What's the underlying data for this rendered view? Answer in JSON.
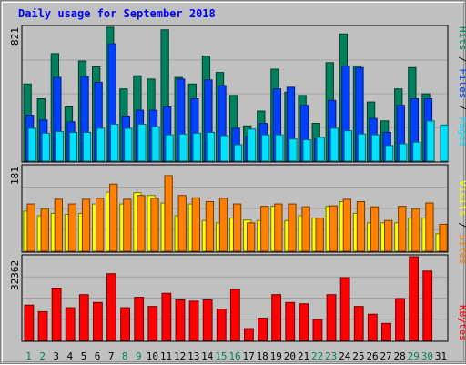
{
  "title": "Daily usage for September 2018",
  "colors": {
    "background": "#c0c0c0",
    "plot_bg": "#c0c0c0",
    "hits": "#00805c",
    "files": "#0040ff",
    "pages": "#00e0ff",
    "visits": "#ffff00",
    "sites": "#ff8000",
    "kbytes": "#ff0000",
    "title": "#0000ff",
    "weekend_day": "#00805c",
    "weekday": "#000000"
  },
  "right_labels": {
    "top": {
      "pages": "Pages",
      "files": "Files",
      "hits": "Hits",
      "sep": " / "
    },
    "middle": {
      "sites": "Sites",
      "visits": "Visits",
      "sep": " / "
    },
    "bottom": {
      "kbytes": "KBytes"
    }
  },
  "chart_data": [
    {
      "type": "bar",
      "panel": "hits-files-pages",
      "ymax_label": "821",
      "ylim": [
        0,
        821
      ],
      "categories": [
        "1",
        "2",
        "3",
        "4",
        "5",
        "6",
        "7",
        "8",
        "9",
        "10",
        "11",
        "12",
        "13",
        "14",
        "15",
        "16",
        "17",
        "18",
        "19",
        "20",
        "21",
        "22",
        "23",
        "24",
        "25",
        "26",
        "27",
        "28",
        "29",
        "30",
        "31"
      ],
      "weekend_days": [
        "1",
        "2",
        "8",
        "9",
        "15",
        "16",
        "22",
        "23",
        "29",
        "30"
      ],
      "series": [
        {
          "name": "Hits",
          "values": [
            470,
            380,
            655,
            330,
            610,
            575,
            816,
            440,
            520,
            500,
            800,
            510,
            470,
            640,
            540,
            400,
            215,
            305,
            560,
            420,
            400,
            230,
            600,
            775,
            580,
            360,
            245,
            440,
            570,
            410,
            0
          ]
        },
        {
          "name": "Files",
          "values": [
            280,
            250,
            510,
            240,
            515,
            480,
            715,
            275,
            310,
            310,
            330,
            500,
            380,
            495,
            460,
            200,
            150,
            230,
            440,
            450,
            340,
            135,
            370,
            580,
            570,
            260,
            175,
            340,
            380,
            380,
            0
          ]
        },
        {
          "name": "Pages",
          "values": [
            200,
            170,
            180,
            175,
            175,
            200,
            225,
            200,
            225,
            210,
            160,
            165,
            170,
            175,
            155,
            100,
            195,
            160,
            160,
            135,
            130,
            145,
            200,
            185,
            165,
            160,
            95,
            105,
            115,
            245,
            220
          ]
        }
      ]
    },
    {
      "type": "bar",
      "panel": "visits-sites",
      "ymax_label": "181",
      "ylim": [
        0,
        181
      ],
      "categories": [
        "1",
        "2",
        "3",
        "4",
        "5",
        "6",
        "7",
        "8",
        "9",
        "10",
        "11",
        "12",
        "13",
        "14",
        "15",
        "16",
        "17",
        "18",
        "19",
        "20",
        "21",
        "22",
        "23",
        "24",
        "25",
        "26",
        "27",
        "28",
        "29",
        "30",
        "31"
      ],
      "series": [
        {
          "name": "Visits",
          "values": [
            85,
            75,
            80,
            78,
            80,
            100,
            125,
            100,
            124,
            118,
            102,
            75,
            100,
            65,
            60,
            70,
            66,
            65,
            95,
            65,
            75,
            70,
            95,
            105,
            80,
            60,
            60,
            60,
            70,
            70,
            37
          ]
        },
        {
          "name": "Sites",
          "values": [
            100,
            90,
            110,
            100,
            110,
            112,
            142,
            110,
            118,
            112,
            160,
            118,
            113,
            105,
            112,
            100,
            60,
            95,
            100,
            100,
            94,
            70,
            96,
            110,
            105,
            94,
            65,
            95,
            90,
            102,
            57
          ]
        }
      ]
    },
    {
      "type": "bar",
      "panel": "kbytes",
      "ymax_label": "32362",
      "ylim": [
        0,
        32362
      ],
      "categories": [
        "1",
        "2",
        "3",
        "4",
        "5",
        "6",
        "7",
        "8",
        "9",
        "10",
        "11",
        "12",
        "13",
        "14",
        "15",
        "16",
        "17",
        "18",
        "19",
        "20",
        "21",
        "22",
        "23",
        "24",
        "25",
        "26",
        "27",
        "28",
        "29",
        "30",
        "31"
      ],
      "series": [
        {
          "name": "KBytes",
          "values": [
            13500,
            11000,
            20000,
            12500,
            17500,
            14500,
            25500,
            12500,
            16500,
            13000,
            18000,
            15500,
            15000,
            15500,
            12000,
            19500,
            4500,
            8500,
            17500,
            14500,
            14000,
            8000,
            17500,
            24000,
            13000,
            10000,
            6500,
            16000,
            32000,
            26500,
            0
          ]
        }
      ]
    }
  ]
}
